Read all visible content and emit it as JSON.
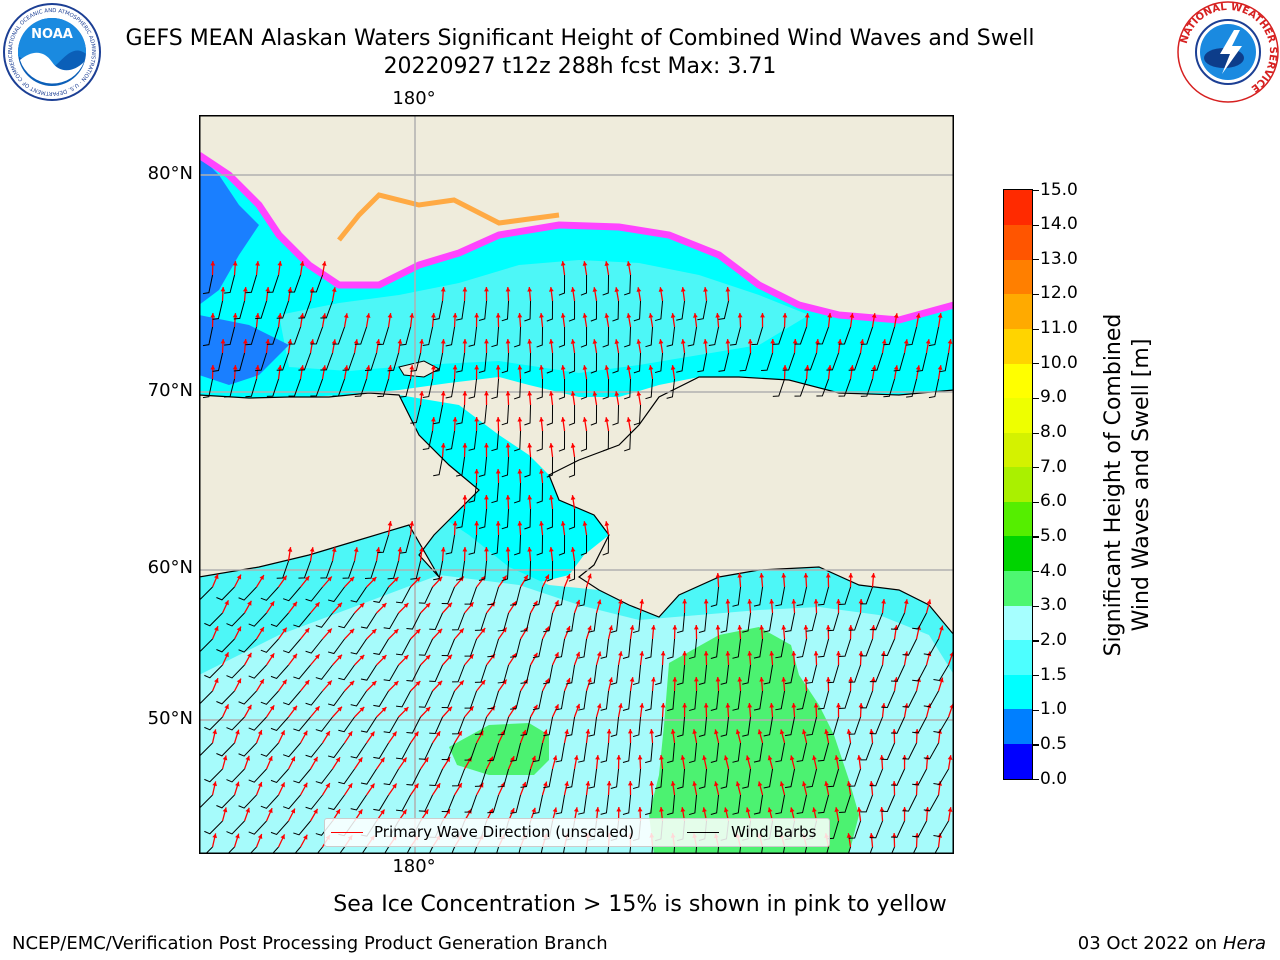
{
  "title": {
    "line1": "GEFS MEAN Alaskan Waters Significant Height of Combined Wind Waves and Swell",
    "line2": "20220927 t12z 288h fcst   Max: 3.71"
  },
  "logos": {
    "noaa_text": "NOAA",
    "noaa_ring": "NATIONAL OCEANIC AND ATMOSPHERIC ADMINISTRATION · U.S. DEPARTMENT OF COMMERCE",
    "nws_ring": "NATIONAL WEATHER SERVICE"
  },
  "map": {
    "lat_labels": [
      "80°N",
      "70°N",
      "60°N",
      "50°N"
    ],
    "lon_top": "180°",
    "lon_bottom": "180°",
    "colors": {
      "land": "#efecdc",
      "ocean_low": "#00ffff",
      "ocean_mid": "#4df7f7",
      "ocean_high": "#a6fbfb",
      "peak": "#4cf271",
      "ice_pink": "#ff44ff",
      "ice_orange": "#ffaa44",
      "blue_shallow": "#1a7fff",
      "arrow": "#ff0000",
      "barb": "#000000"
    }
  },
  "colorbar": {
    "label_line1": "Significant Height of Combined",
    "label_line2": "Wind Waves and Swell [m]",
    "ticks": [
      "15.0",
      "14.0",
      "13.0",
      "12.0",
      "11.0",
      "10.0",
      "9.0",
      "8.0",
      "7.0",
      "6.0",
      "5.0",
      "4.0",
      "3.0",
      "2.0",
      "1.5",
      "1.0",
      "0.5",
      "0.0"
    ],
    "colors_bottom_to_top": [
      "#0000ff",
      "#007fff",
      "#00ffff",
      "#4dffff",
      "#a6ffff",
      "#4df771",
      "#00d400",
      "#55ee00",
      "#aaf000",
      "#d4f200",
      "#eeff00",
      "#ffff00",
      "#ffd400",
      "#ffaa00",
      "#ff7f00",
      "#ff5500",
      "#ff2a00"
    ]
  },
  "legend": {
    "wave_label": "Primary Wave Direction (unscaled)",
    "barb_label": "Wind Barbs"
  },
  "caption": "Sea Ice Concentration > 15% is shown in pink to yellow",
  "footer": {
    "left": "NCEP/EMC/Verification Post Processing Product Generation Branch",
    "right_date": "03 Oct 2022 on ",
    "right_machine": "Hera"
  }
}
